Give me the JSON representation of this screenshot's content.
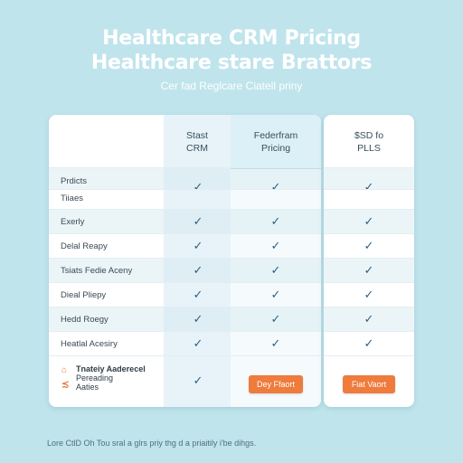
{
  "header": {
    "title_line1": "Healthcare CRM Pricing",
    "title_line2": "Healthcare stare Brattors",
    "subtitle": "Cer fad Reglcare Ciatell priny"
  },
  "table": {
    "columns": [
      {
        "line1": "Stast",
        "line2": "CRM"
      },
      {
        "line1": "Federfram",
        "line2": "Pricing"
      },
      {
        "line1": "$SD fo",
        "line2": "PLLS"
      }
    ],
    "rows": [
      {
        "label": "Prdicts",
        "checks": [
          true,
          true,
          true
        ]
      },
      {
        "label": "Tiiaes",
        "checks": [
          false,
          false,
          false
        ]
      },
      {
        "label": "Exerly",
        "checks": [
          true,
          true,
          true
        ]
      },
      {
        "label": "Delal Reapy",
        "checks": [
          true,
          true,
          true
        ]
      },
      {
        "label": "Tsiats Fedie Aceny",
        "checks": [
          true,
          true,
          true
        ]
      },
      {
        "label": "Dieal Pliepy",
        "checks": [
          true,
          true,
          true
        ]
      },
      {
        "label": "Hedd Roegy",
        "checks": [
          true,
          true,
          true
        ]
      },
      {
        "label": "Heatlal Acesiry",
        "checks": [
          true,
          true,
          true
        ]
      }
    ],
    "check_glyph": "✓",
    "footer": {
      "label_line1": "Tnateiy Aaderecel",
      "label_line2": "Pereading",
      "label_line3": "Aaties",
      "col1_check": "✓",
      "button_primary": "Dey Ffaort",
      "button_secondary": "Fiat Vaort"
    }
  },
  "footer_note": "Lore CtlD Oh Tou sral a glrs priy thg d a priaitily i'be dihgs.",
  "colors": {
    "background": "#bfe4ec",
    "accent": "#ef7b3c",
    "check": "#2f5f85"
  }
}
